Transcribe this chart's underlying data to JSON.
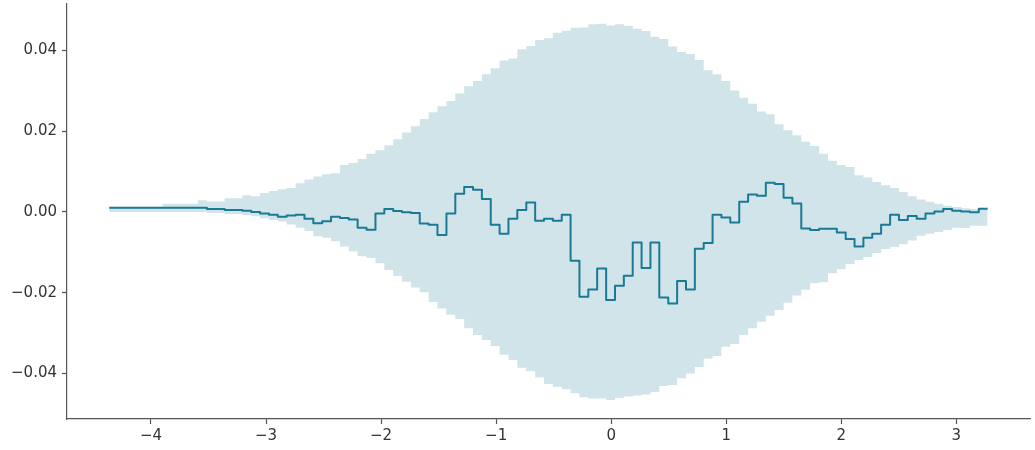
{
  "chart_data": {
    "type": "step",
    "x": [
      -4.363,
      -4.286,
      -4.209,
      -4.132,
      -4.055,
      -3.977,
      -3.9,
      -3.823,
      -3.746,
      -3.669,
      -3.591,
      -3.514,
      -3.437,
      -3.36,
      -3.283,
      -3.206,
      -3.129,
      -3.052,
      -2.975,
      -2.898,
      -2.821,
      -2.743,
      -2.666,
      -2.589,
      -2.512,
      -2.435,
      -2.358,
      -2.281,
      -2.204,
      -2.127,
      -2.049,
      -1.972,
      -1.895,
      -1.818,
      -1.741,
      -1.664,
      -1.587,
      -1.51,
      -1.432,
      -1.355,
      -1.278,
      -1.201,
      -1.124,
      -1.047,
      -0.97,
      -0.893,
      -0.816,
      -0.738,
      -0.661,
      -0.584,
      -0.507,
      -0.43,
      -0.353,
      -0.276,
      -0.199,
      -0.122,
      -0.044,
      0.033,
      0.11,
      0.187,
      0.264,
      0.341,
      0.418,
      0.496,
      0.573,
      0.65,
      0.727,
      0.804,
      0.881,
      0.958,
      1.035,
      1.113,
      1.19,
      1.267,
      1.344,
      1.421,
      1.498,
      1.575,
      1.652,
      1.729,
      1.807,
      1.884,
      1.961,
      2.038,
      2.115,
      2.192,
      2.269,
      2.346,
      2.424,
      2.501,
      2.578,
      2.655,
      2.732,
      2.809,
      2.886,
      2.963,
      3.041,
      3.118,
      3.195,
      3.272
    ],
    "series": [
      {
        "color": "#1a7a95",
        "values": [
          0.001,
          0.001,
          0.001,
          0.001,
          0.001,
          0.001,
          0.001,
          0.001,
          0.001,
          0.001,
          0.001,
          0.001,
          0.0007,
          0.0007,
          0.0005,
          0.0005,
          0.0003,
          0.0,
          -0.0004,
          -0.0007,
          -0.0012,
          -0.0009,
          -0.0007,
          -0.0017,
          -0.0028,
          -0.0023,
          -0.0012,
          -0.0015,
          -0.0019,
          -0.0039,
          -0.0044,
          -0.0004,
          0.0007,
          0.0002,
          -0.0001,
          -0.0003,
          -0.0029,
          -0.0032,
          -0.0057,
          -0.0004,
          0.0045,
          0.0062,
          0.0055,
          0.0032,
          -0.0032,
          -0.0054,
          -0.0017,
          0.0005,
          0.0023,
          -0.0022,
          -0.0017,
          -0.0022,
          -0.0007,
          -0.0121,
          -0.021,
          -0.0192,
          -0.014,
          -0.0218,
          -0.0183,
          -0.0158,
          -0.0076,
          -0.0139,
          -0.0076,
          -0.0212,
          -0.0227,
          -0.0171,
          -0.0192,
          -0.0091,
          -0.0077,
          -0.0007,
          -0.0014,
          -0.0026,
          0.0025,
          0.0043,
          0.004,
          0.0072,
          0.0069,
          0.0035,
          0.0021,
          -0.0041,
          -0.0045,
          -0.0042,
          -0.0042,
          -0.0051,
          -0.0067,
          -0.0086,
          -0.0064,
          -0.0054,
          -0.0032,
          -0.0007,
          -0.002,
          -0.001,
          -0.0017,
          -0.0004,
          0.0001,
          0.0007,
          0.0003,
          0.0001,
          -0.0001,
          0.0008
        ],
        "upper": [
          0.001,
          0.001,
          0.001,
          0.001,
          0.001,
          0.001,
          0.001,
          0.002,
          0.002,
          0.002,
          0.002,
          0.0029,
          0.0026,
          0.0026,
          0.0034,
          0.0034,
          0.0041,
          0.0039,
          0.0047,
          0.0052,
          0.0056,
          0.0059,
          0.0071,
          0.008,
          0.0088,
          0.0093,
          0.0096,
          0.0116,
          0.0121,
          0.0131,
          0.0144,
          0.0153,
          0.0165,
          0.018,
          0.0197,
          0.0212,
          0.023,
          0.0247,
          0.0262,
          0.0275,
          0.0293,
          0.0311,
          0.0324,
          0.0341,
          0.0356,
          0.0375,
          0.038,
          0.0403,
          0.0411,
          0.0426,
          0.043,
          0.0444,
          0.0449,
          0.0456,
          0.0457,
          0.0465,
          0.0466,
          0.0462,
          0.0465,
          0.0461,
          0.0454,
          0.0448,
          0.0434,
          0.0428,
          0.041,
          0.0396,
          0.0391,
          0.0376,
          0.0351,
          0.0341,
          0.0324,
          0.0301,
          0.0283,
          0.0268,
          0.0249,
          0.0242,
          0.0217,
          0.0202,
          0.019,
          0.0174,
          0.0163,
          0.0144,
          0.0127,
          0.0116,
          0.0111,
          0.0091,
          0.0085,
          0.0074,
          0.0066,
          0.0059,
          0.0049,
          0.0039,
          0.0031,
          0.0025,
          0.002,
          0.0015,
          0.0012,
          0.0009,
          0.0007,
          0.0008
        ],
        "lower": [
          0.0,
          0.0,
          0.0,
          0.0,
          0.0,
          0.0,
          0.0,
          0.0,
          0.0,
          0.0,
          0.0,
          0.0,
          -0.0003,
          -0.0003,
          -0.0006,
          -0.0006,
          -0.0008,
          -0.0011,
          -0.0016,
          -0.002,
          -0.0024,
          -0.0031,
          -0.0039,
          -0.0047,
          -0.006,
          -0.0064,
          -0.0073,
          -0.0086,
          -0.0098,
          -0.011,
          -0.0114,
          -0.0127,
          -0.0144,
          -0.0159,
          -0.0173,
          -0.0187,
          -0.0199,
          -0.0223,
          -0.0239,
          -0.0255,
          -0.0265,
          -0.0288,
          -0.0305,
          -0.0317,
          -0.0332,
          -0.0354,
          -0.0367,
          -0.0386,
          -0.0395,
          -0.041,
          -0.0426,
          -0.0433,
          -0.0439,
          -0.0449,
          -0.0459,
          -0.0462,
          -0.0462,
          -0.0466,
          -0.0461,
          -0.0457,
          -0.0455,
          -0.0452,
          -0.0446,
          -0.0431,
          -0.0429,
          -0.0412,
          -0.04,
          -0.0384,
          -0.0364,
          -0.0357,
          -0.0334,
          -0.0327,
          -0.0305,
          -0.0288,
          -0.0272,
          -0.0257,
          -0.0243,
          -0.0225,
          -0.0207,
          -0.0193,
          -0.0177,
          -0.0174,
          -0.0152,
          -0.0142,
          -0.0129,
          -0.0119,
          -0.0112,
          -0.0102,
          -0.0092,
          -0.0087,
          -0.008,
          -0.0071,
          -0.0059,
          -0.0054,
          -0.005,
          -0.0045,
          -0.0039,
          -0.004,
          -0.0034,
          -0.0034
        ]
      }
    ],
    "xlim": [
      -4.73,
      3.64
    ],
    "ylim": [
      -0.0513,
      0.0515
    ],
    "xticks": [
      {
        "value": -4,
        "label": "−4"
      },
      {
        "value": -3,
        "label": "−3"
      },
      {
        "value": -2,
        "label": "−2"
      },
      {
        "value": -1,
        "label": "−1"
      },
      0,
      1,
      2,
      3
    ],
    "yticks": [
      {
        "value": -0.04,
        "label": "−0.04"
      },
      {
        "value": -0.02,
        "label": "−0.02"
      },
      {
        "value": 0,
        "label": "0.00"
      },
      {
        "value": 0.02,
        "label": "0.02"
      },
      {
        "value": 0.04,
        "label": "0.04"
      }
    ]
  }
}
